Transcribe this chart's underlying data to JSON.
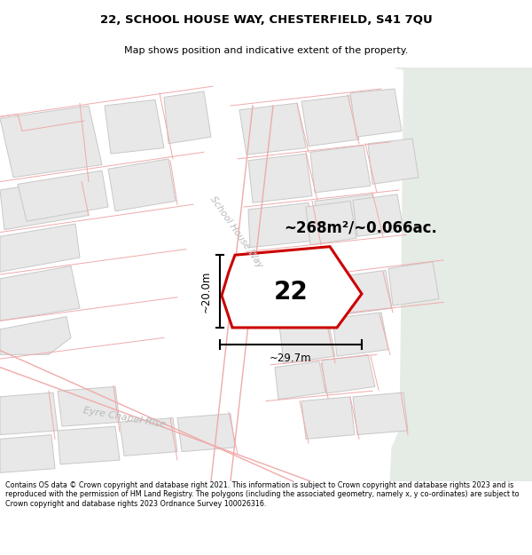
{
  "title_line1": "22, SCHOOL HOUSE WAY, CHESTERFIELD, S41 7QU",
  "title_line2": "Map shows position and indicative extent of the property.",
  "footer_text": "Contains OS data © Crown copyright and database right 2021. This information is subject to Crown copyright and database rights 2023 and is reproduced with the permission of HM Land Registry. The polygons (including the associated geometry, namely x, y co-ordinates) are subject to Crown copyright and database rights 2023 Ordnance Survey 100026316.",
  "property_number": "22",
  "area_label": "~268m²/~0.066ac.",
  "width_label": "~29.7m",
  "height_label": "~20.0m",
  "map_bg": "#f5f5f5",
  "building_fill": "#e8e8e8",
  "building_stroke": "#c8c8c8",
  "property_fill": "#ffffff",
  "property_stroke": "#cc0000",
  "green_fill": "#e5ebe5",
  "road_line": "#f0aaaa",
  "street_color": "#b8b8b8",
  "street_label1": "School House Way",
  "street_label2": "Eyre Chapel Rise",
  "dim_color": "#000000"
}
